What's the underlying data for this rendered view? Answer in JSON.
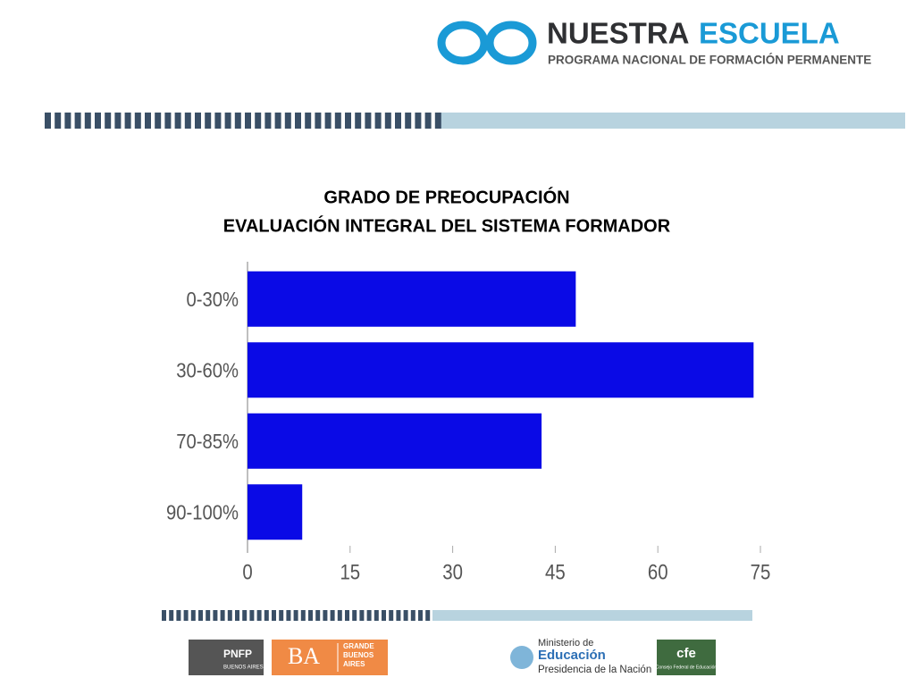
{
  "header": {
    "brand_1": "NUESTRA",
    "brand_2": "ESCUELA",
    "tagline": "PROGRAMA NACIONAL DE FORMACIÓN PERMANENTE"
  },
  "chart_data": {
    "type": "bar",
    "orientation": "horizontal",
    "title": "GRADO DE PREOCUPACIÓN",
    "subtitle": "EVALUACIÓN INTEGRAL DEL SISTEMA FORMADOR",
    "categories": [
      "0-30%",
      "30-60%",
      "70-85%",
      "90-100%"
    ],
    "values": [
      48,
      74,
      43,
      8
    ],
    "color": "#0a0ae6",
    "xlim": [
      0,
      75
    ],
    "xticks": [
      0,
      15,
      30,
      45,
      60,
      75
    ],
    "grid": false
  },
  "footer": {
    "pnfp": "PNFP",
    "pnfp_sub": "BUENOS AIRES",
    "ba": "BA",
    "gba": "GRANDE BUENOS AIRES",
    "min_1": "Ministerio de",
    "min_2": "Educación",
    "min_3": "Presidencia de la Nación",
    "cfe": "cfe",
    "cfe_sub": "Consejo Federal de Educación"
  }
}
